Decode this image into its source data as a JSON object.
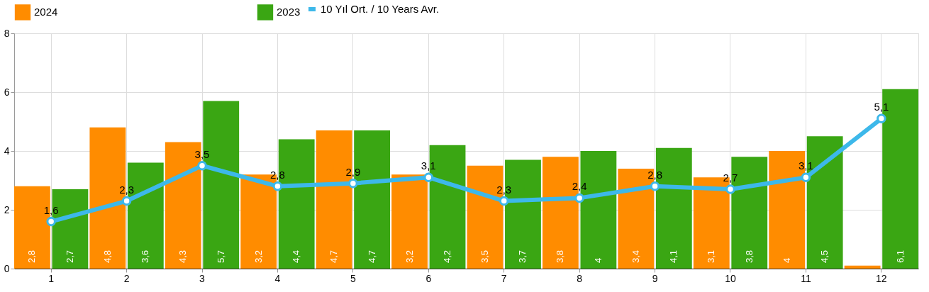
{
  "chart_data": {
    "type": "bar",
    "categories": [
      "1",
      "2",
      "3",
      "4",
      "5",
      "6",
      "7",
      "8",
      "9",
      "10",
      "11",
      "12"
    ],
    "series": [
      {
        "name": "2024",
        "color": "#ff8c00",
        "values": [
          2.8,
          4.8,
          4.3,
          3.2,
          4.7,
          3.2,
          3.5,
          3.8,
          3.4,
          3.1,
          4,
          0.1
        ],
        "value_labels": [
          "2,8",
          "4,8",
          "4,3",
          "3,2",
          "4,7",
          "3,2",
          "3,5",
          "3,8",
          "3,4",
          "3,1",
          "4",
          null
        ]
      },
      {
        "name": "2023",
        "color": "#3aa613",
        "values": [
          2.7,
          3.6,
          5.7,
          4.4,
          4.7,
          4.2,
          3.7,
          4,
          4.1,
          3.8,
          4.5,
          6.1
        ],
        "value_labels": [
          "2,7",
          "3,6",
          "5,7",
          "4,4",
          "4,7",
          "4,2",
          "3,7",
          "4",
          "4,1",
          "3,8",
          "4,5",
          "6,1"
        ]
      },
      {
        "name": "10 Yıl Ort. / 10 Years Avr.",
        "type": "line",
        "color": "#3db8ea",
        "values": [
          1.6,
          2.3,
          3.5,
          2.8,
          2.9,
          3.1,
          2.3,
          2.4,
          2.8,
          2.7,
          3.1,
          5.1
        ],
        "value_labels": [
          "1,6",
          "2,3",
          "3,5",
          "2,8",
          "2,9",
          "3,1",
          "2,3",
          "2,4",
          "2,8",
          "2,7",
          "3,1",
          "5,1"
        ]
      }
    ],
    "ylim": [
      0,
      8
    ],
    "yticks": [
      0,
      2,
      4,
      6,
      8
    ],
    "grid": true,
    "legend": "top",
    "marker": "circle",
    "line_style": "solid"
  }
}
